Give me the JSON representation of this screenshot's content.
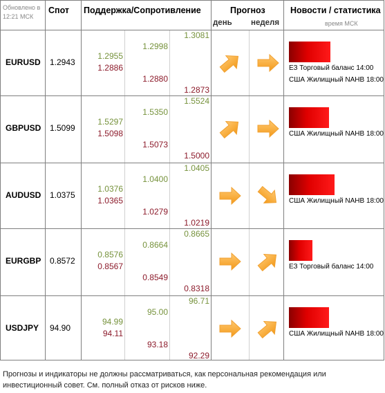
{
  "header": {
    "updated": "Обновлено в 12:21 МСК",
    "spot": "Спот",
    "levels": "Поддержка/Сопротивление",
    "forecast": "Прогноз",
    "day": "день",
    "week": "неделя",
    "news": "Новости / статистика",
    "time": "время МСК"
  },
  "rows": [
    {
      "pair": "EURUSD",
      "spot": "1.2943",
      "r1": "1.2955",
      "r2": "1.2998",
      "r3": "1.3081",
      "s1": "1.2886",
      "s2": "1.2880",
      "s3": "1.2873",
      "news": [
        "ЕЗ Торговый баланс 14:00",
        "США Жилищный NAHB 18:00"
      ]
    },
    {
      "pair": "GBPUSD",
      "spot": "1.5099",
      "r1": "1.5297",
      "r2": "1.5350",
      "r3": "1.5524",
      "s1": "1.5098",
      "s2": "1.5073",
      "s3": "1.5000",
      "news": [
        "США Жилищный NAHB 18:00"
      ]
    },
    {
      "pair": "AUDUSD",
      "spot": "1.0375",
      "r1": "1.0376",
      "r2": "1.0400",
      "r3": "1.0405",
      "s1": "1.0365",
      "s2": "1.0279",
      "s3": "1.0219",
      "news": [
        "США Жилищный NAHB 18:00"
      ]
    },
    {
      "pair": "EURGBP",
      "spot": "0.8572",
      "r1": "0.8576",
      "r2": "0.8664",
      "r3": "0.8665",
      "s1": "0.8567",
      "s2": "0.8549",
      "s3": "0.8318",
      "news": [
        "ЕЗ Торговый баланс 14:00"
      ]
    },
    {
      "pair": "USDJPY",
      "spot": "94.90",
      "r1": "94.99",
      "r2": "95.00",
      "r3": "96.71",
      "s1": "94.11",
      "s2": "93.18",
      "s3": "92.29",
      "news": [
        "США Жилищный NAHB 18:00"
      ]
    }
  ],
  "footer": "Прогнозы и индикаторы не должны рассматриваться, как персональная рекомендация или инвестиционный совет. См. полный отказ от рисков ниже."
}
